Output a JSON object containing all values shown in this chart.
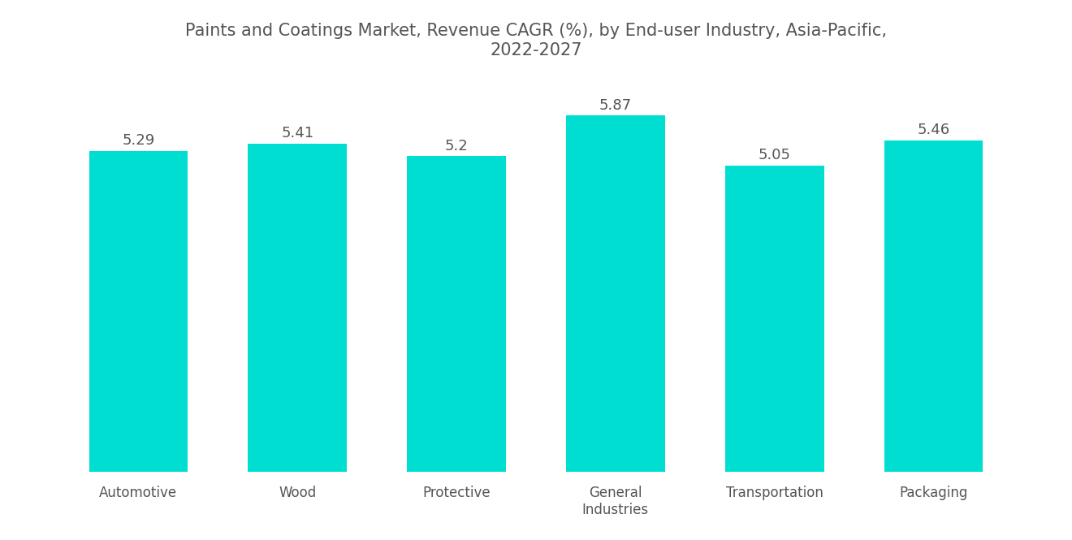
{
  "title": "Paints and Coatings Market, Revenue CAGR (%), by End-user Industry, Asia-Pacific,\n2022-2027",
  "categories": [
    "Automotive",
    "Wood",
    "Protective",
    "General\nIndustries",
    "Transportation",
    "Packaging"
  ],
  "values": [
    5.29,
    5.41,
    5.2,
    5.87,
    5.05,
    5.46
  ],
  "bar_color": "#00DED1",
  "label_color": "#555555",
  "title_color": "#555555",
  "background_color": "#ffffff",
  "ylim": [
    0,
    6.5
  ],
  "bar_width": 0.62,
  "title_fontsize": 15,
  "tick_fontsize": 12,
  "value_fontsize": 13
}
